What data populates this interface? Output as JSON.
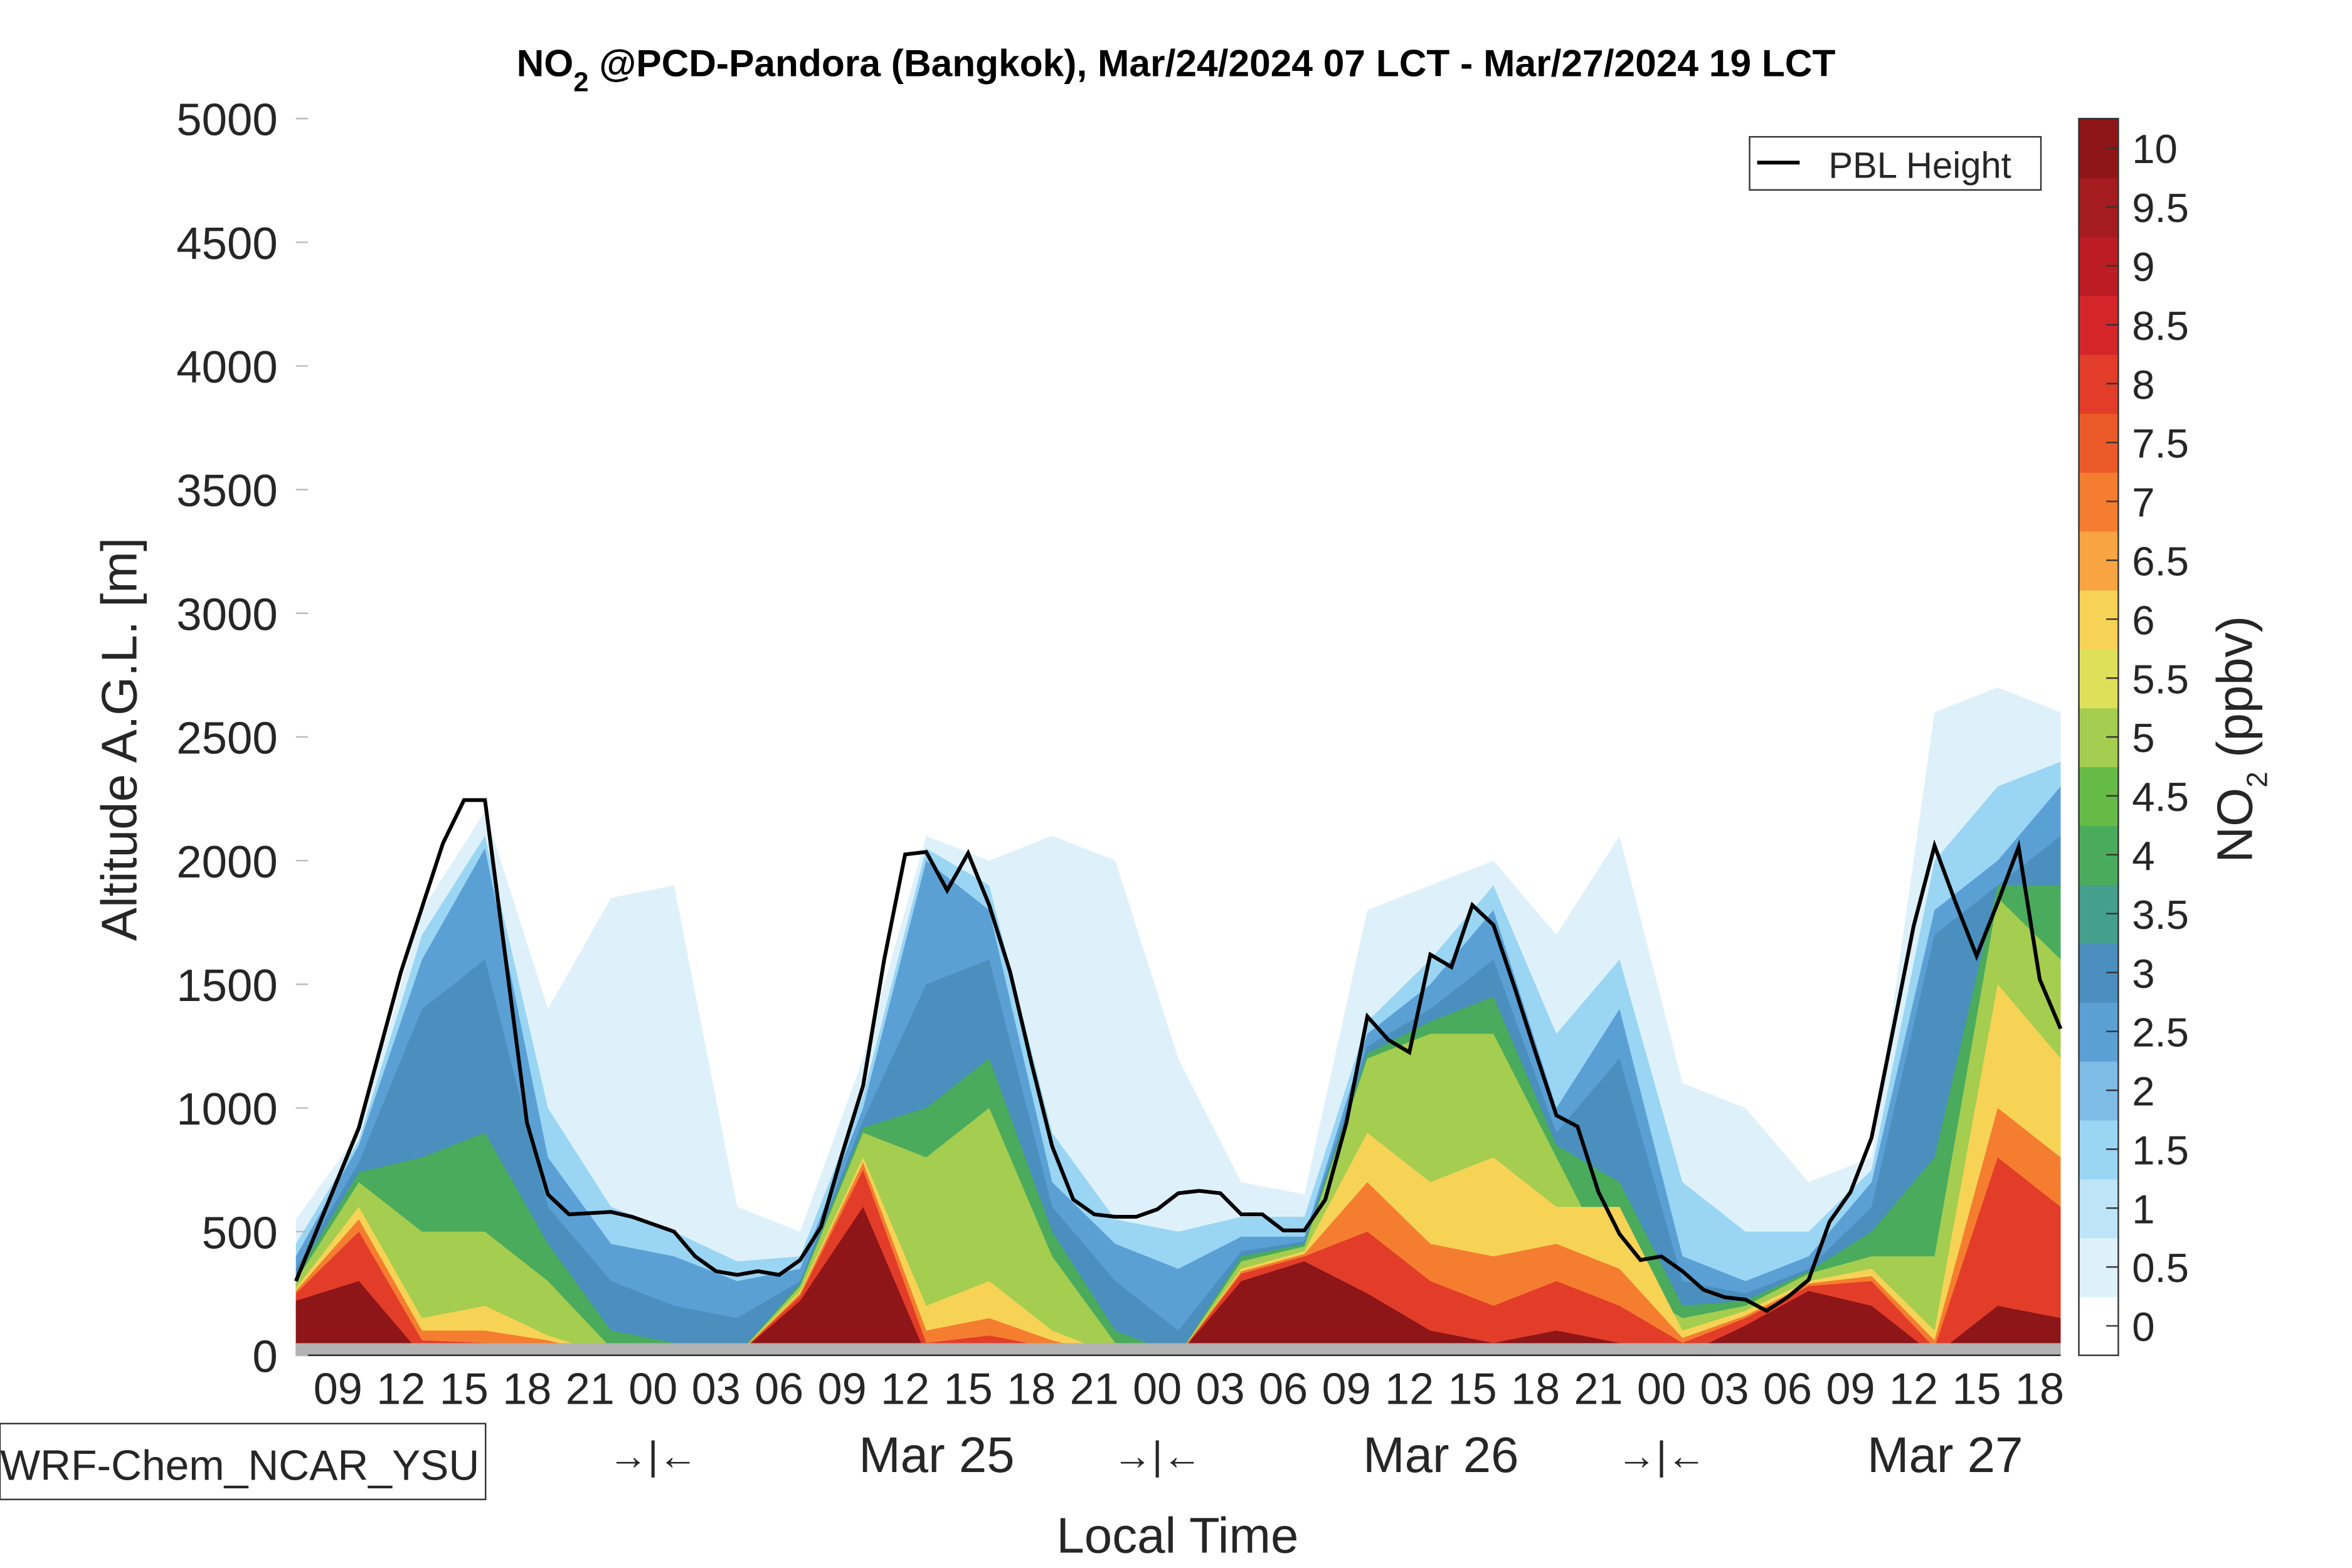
{
  "chart_data": {
    "type": "contour",
    "title": {
      "species": "NO",
      "sub": "2",
      "rest": " @PCD-Pandora (Bangkok), Mar/24/2024 07 LCT - Mar/27/2024 19 LCT"
    },
    "ylabel": "Altitude A.G.L. [m]",
    "xlabel": "Local Time",
    "ylim": [
      0,
      5000
    ],
    "yticks": [
      "0",
      "500",
      "1000",
      "1500",
      "2000",
      "2500",
      "3000",
      "3500",
      "4000",
      "4500",
      "5000"
    ],
    "x_hours_range": [
      0,
      84
    ],
    "hour_tick_labels": [
      "09",
      "12",
      "15",
      "18",
      "21",
      "00",
      "03",
      "06",
      "09",
      "12",
      "15",
      "18",
      "21",
      "00",
      "03",
      "06",
      "09",
      "12",
      "15",
      "18",
      "21",
      "00",
      "03",
      "06",
      "09",
      "12",
      "15",
      "18"
    ],
    "day_labels": [
      {
        "label": "Mar 25",
        "hour": 30.5
      },
      {
        "label": "Mar 26",
        "hour": 54.5
      },
      {
        "label": "Mar 27",
        "hour": 78.5
      }
    ],
    "day_separators": [
      {
        "label": "→|←",
        "hour": 17
      },
      {
        "label": "→|←",
        "hour": 41
      },
      {
        "label": "→|←",
        "hour": 65
      }
    ],
    "model_label": "WRF-Chem_NCAR_YSU",
    "legend": {
      "entry": "PBL Height",
      "placement": "top-right"
    },
    "colorbar": {
      "label": "NO",
      "label_sub": "2",
      "label_rest": " (ppbv)",
      "ticks": [
        "0",
        "0.5",
        "1",
        "1.5",
        "2",
        "2.5",
        "3",
        "3.5",
        "4",
        "4.5",
        "5",
        "5.5",
        "6",
        "6.5",
        "7",
        "7.5",
        "8",
        "8.5",
        "9",
        "9.5",
        "10"
      ],
      "colors": [
        "#ffffff",
        "#def1fa",
        "#bde5f7",
        "#9ad6f4",
        "#7ebbe5",
        "#5ba0d5",
        "#4a8fbd",
        "#44a08c",
        "#4aab5c",
        "#66bb47",
        "#a5cd50",
        "#dfe05a",
        "#f6d355",
        "#f8a443",
        "#f57d30",
        "#ec5a2a",
        "#e23d28",
        "#d4262a",
        "#bc1c24",
        "#a51c20",
        "#8e1518"
      ]
    },
    "pbl_height": {
      "hours": [
        0,
        3,
        5,
        7,
        8,
        9,
        11,
        12,
        13,
        15,
        16,
        18,
        19,
        20,
        21,
        22,
        23,
        24,
        25,
        26,
        27,
        28,
        29,
        30,
        31,
        32,
        33,
        34,
        35,
        36,
        37,
        38,
        39,
        40,
        41,
        42,
        43,
        44,
        45,
        46,
        47,
        48,
        49,
        50,
        51,
        52,
        53,
        54,
        55,
        56,
        57,
        58,
        59,
        60,
        61,
        62,
        63,
        64,
        65,
        66,
        67,
        68,
        69,
        70,
        71,
        72,
        73,
        74,
        75,
        76,
        77,
        78,
        79,
        80,
        81,
        82,
        83,
        84
      ],
      "meters": [
        300,
        920,
        1550,
        2070,
        2245,
        2245,
        940,
        650,
        570,
        580,
        560,
        500,
        400,
        340,
        325,
        340,
        325,
        385,
        520,
        815,
        1090,
        1600,
        2025,
        2035,
        1880,
        2030,
        1820,
        1550,
        1185,
        845,
        630,
        570,
        560,
        560,
        590,
        655,
        665,
        655,
        570,
        570,
        505,
        505,
        630,
        940,
        1370,
        1275,
        1225,
        1620,
        1570,
        1820,
        1740,
        1490,
        1225,
        970,
        925,
        660,
        490,
        385,
        400,
        340,
        265,
        235,
        225,
        180,
        235,
        305,
        540,
        660,
        880,
        1305,
        1735,
        2060,
        1830,
        1615,
        1830,
        2055,
        1520,
        1320
      ]
    },
    "no2_level_tops": {
      "hours_step": 3,
      "levels": [
        {
          "ppbv": 0.5,
          "color": "#def1fa",
          "tops": [
            550,
            900,
            1800,
            2200,
            1400,
            1850,
            1900,
            600,
            500,
            1200,
            2100,
            2000,
            2100,
            2000,
            1200,
            700,
            650,
            1800,
            1900,
            2000,
            1700,
            2100,
            1100,
            1000,
            700,
            800,
            2600,
            2700,
            2600
          ]
        },
        {
          "ppbv": 1.5,
          "color": "#9ad6f4",
          "tops": [
            450,
            870,
            1700,
            2100,
            1000,
            600,
            500,
            380,
            400,
            1050,
            2050,
            1900,
            900,
            550,
            500,
            560,
            560,
            1350,
            1600,
            1900,
            1300,
            1600,
            700,
            500,
            500,
            750,
            2000,
            2300,
            2400
          ]
        },
        {
          "ppbv": 2.5,
          "color": "#5ba0d5",
          "tops": [
            400,
            850,
            1600,
            2050,
            800,
            450,
            400,
            300,
            350,
            1000,
            2000,
            1800,
            700,
            450,
            350,
            480,
            480,
            1300,
            1500,
            1800,
            1000,
            1400,
            400,
            300,
            400,
            700,
            1800,
            2000,
            2300
          ]
        },
        {
          "ppbv": 3,
          "color": "#4a8fbd",
          "tops": [
            350,
            780,
            1400,
            1600,
            600,
            300,
            200,
            150,
            300,
            950,
            1500,
            1600,
            600,
            300,
            100,
            420,
            460,
            1250,
            1400,
            1600,
            900,
            1200,
            300,
            250,
            350,
            600,
            1700,
            1900,
            2100
          ]
        },
        {
          "ppbv": 4,
          "color": "#4aab5c",
          "tops": [
            320,
            740,
            800,
            900,
            450,
            100,
            50,
            0,
            290,
            920,
            1000,
            1200,
            500,
            100,
            0,
            400,
            450,
            1220,
            1350,
            1450,
            850,
            700,
            200,
            220,
            340,
            500,
            800,
            1900,
            1900
          ]
        },
        {
          "ppbv": 5,
          "color": "#a5cd50",
          "tops": [
            300,
            700,
            500,
            500,
            300,
            30,
            0,
            0,
            280,
            900,
            800,
            1000,
            400,
            50,
            0,
            380,
            440,
            1200,
            1300,
            1300,
            800,
            300,
            150,
            200,
            330,
            400,
            400,
            1850,
            1600
          ]
        },
        {
          "ppbv": 6,
          "color": "#f6d355",
          "tops": [
            270,
            600,
            150,
            200,
            80,
            0,
            0,
            0,
            260,
            800,
            200,
            300,
            100,
            0,
            0,
            350,
            420,
            900,
            700,
            800,
            600,
            600,
            100,
            180,
            300,
            350,
            100,
            1500,
            1200
          ]
        },
        {
          "ppbv": 7,
          "color": "#f57d30",
          "tops": [
            260,
            550,
            100,
            100,
            60,
            0,
            0,
            0,
            250,
            780,
            100,
            150,
            60,
            0,
            0,
            340,
            410,
            700,
            450,
            400,
            450,
            350,
            70,
            160,
            290,
            320,
            60,
            1000,
            800
          ]
        },
        {
          "ppbv": 8,
          "color": "#e23d28",
          "tops": [
            250,
            500,
            60,
            50,
            40,
            0,
            0,
            0,
            240,
            750,
            50,
            80,
            30,
            0,
            0,
            330,
            400,
            500,
            300,
            200,
            300,
            200,
            50,
            150,
            280,
            300,
            30,
            800,
            600
          ]
        },
        {
          "ppbv": 10,
          "color": "#8e1518",
          "tops": [
            220,
            300,
            0,
            0,
            0,
            0,
            0,
            0,
            220,
            600,
            0,
            0,
            0,
            0,
            0,
            300,
            380,
            250,
            100,
            50,
            100,
            50,
            0,
            120,
            260,
            200,
            0,
            200,
            150
          ]
        }
      ]
    }
  }
}
